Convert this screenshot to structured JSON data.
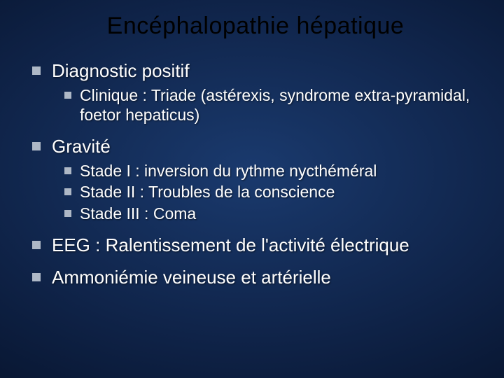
{
  "slide": {
    "title": "Encéphalopathie hépatique",
    "colors": {
      "title_color": "#000000",
      "text_color": "#ffffff",
      "bullet_color": "#aeb8c6",
      "bg_center": "#1a3a6e",
      "bg_mid": "#0f2348",
      "bg_edge": "#000000"
    },
    "fontsizes": {
      "title": 34,
      "lvl1": 26,
      "lvl2": 23
    },
    "sections": {
      "s1": {
        "heading": "Diagnostic positif",
        "items": {
          "i0": "Clinique : Triade (astérexis, syndrome extra-pyramidal, foetor hepaticus)"
        }
      },
      "s2": {
        "heading": "Gravité",
        "items": {
          "i0": "Stade I : inversion du rythme nycthéméral",
          "i1": "Stade II : Troubles de la conscience",
          "i2": "Stade III : Coma"
        }
      },
      "s3": {
        "heading": "EEG : Ralentissement de l'activité électrique"
      },
      "s4": {
        "heading": "Ammoniémie veineuse et artérielle"
      }
    }
  }
}
